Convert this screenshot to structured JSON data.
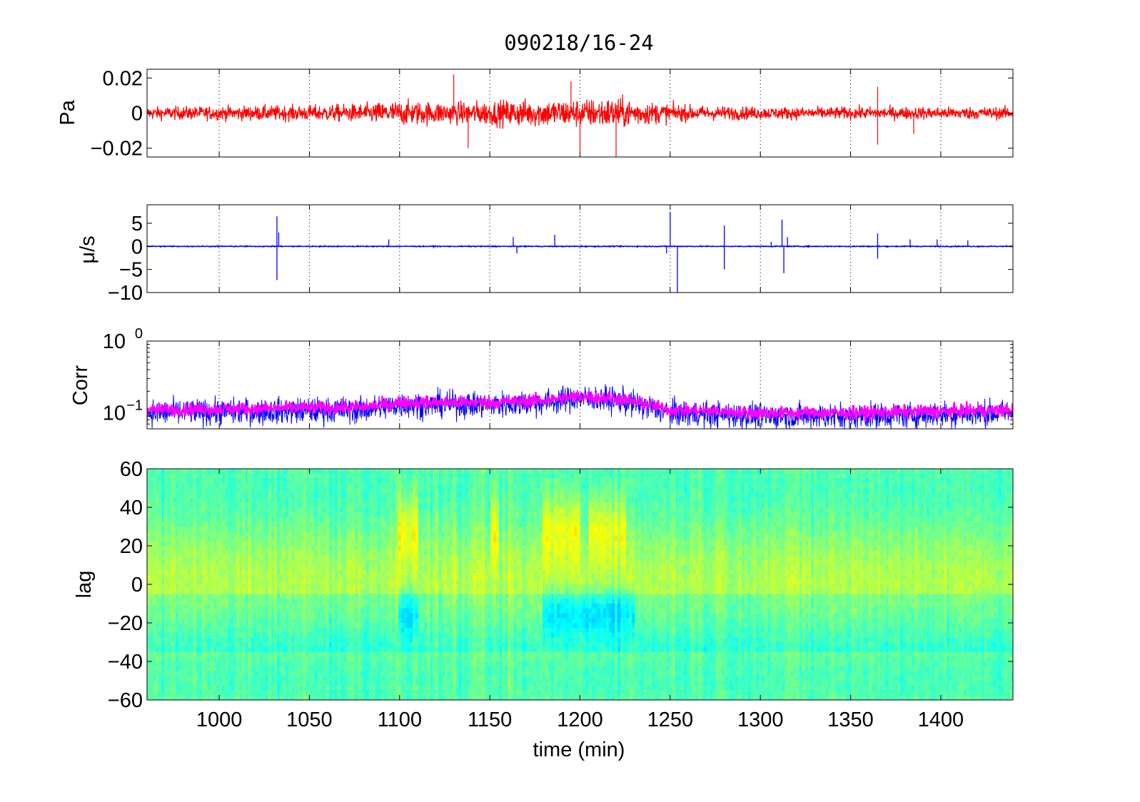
{
  "figure": {
    "title": "090218/16-24",
    "xlabel": "time (min)",
    "xticks": [
      1000,
      1050,
      1100,
      1150,
      1200,
      1250,
      1300,
      1350,
      1400
    ],
    "xlim": [
      960,
      1440
    ]
  },
  "chart_data": [
    {
      "type": "line",
      "ylabel": "Pa",
      "ylim": [
        -0.025,
        0.025
      ],
      "yticks": [
        {
          "v": 0.02,
          "label": "0.02"
        },
        {
          "v": 0,
          "label": "0"
        },
        {
          "v": -0.02,
          "label": "−0.02"
        }
      ],
      "grid": "x-dotted",
      "series": [
        {
          "color": "#ff0000",
          "amplitude_envelope": [
            [
              960,
              0.004
            ],
            [
              1000,
              0.0045
            ],
            [
              1050,
              0.005
            ],
            [
              1080,
              0.006
            ],
            [
              1100,
              0.008
            ],
            [
              1130,
              0.007
            ],
            [
              1150,
              0.008
            ],
            [
              1180,
              0.009
            ],
            [
              1200,
              0.009
            ],
            [
              1220,
              0.01
            ],
            [
              1240,
              0.007
            ],
            [
              1260,
              0.005
            ],
            [
              1300,
              0.004
            ],
            [
              1350,
              0.004
            ],
            [
              1400,
              0.004
            ],
            [
              1440,
              0.004
            ]
          ],
          "spikes": [
            [
              1130,
              0.022
            ],
            [
              1138,
              -0.02
            ],
            [
              1195,
              0.018
            ],
            [
              1200,
              -0.022
            ],
            [
              1220,
              -0.025
            ],
            [
              1365,
              0.015
            ],
            [
              1365,
              -0.018
            ],
            [
              1385,
              -0.012
            ]
          ]
        }
      ]
    },
    {
      "type": "line",
      "ylabel": "μ/s",
      "ylim": [
        -10,
        9
      ],
      "yticks": [
        {
          "v": 5,
          "label": "5"
        },
        {
          "v": 0,
          "label": "0"
        },
        {
          "v": -5,
          "label": "−5"
        },
        {
          "v": -10,
          "label": "−10"
        }
      ],
      "grid": "x-dotted",
      "series": [
        {
          "color": "#0000ff",
          "spikes": [
            [
              1032,
              6.5
            ],
            [
              1032,
              -7.3
            ],
            [
              1033,
              3
            ],
            [
              1094,
              1.5
            ],
            [
              1163,
              2
            ],
            [
              1165,
              -1.5
            ],
            [
              1186,
              2.5
            ],
            [
              1248,
              -1.5
            ],
            [
              1250,
              7.5
            ],
            [
              1254,
              -10
            ],
            [
              1280,
              4.5
            ],
            [
              1280,
              -5
            ],
            [
              1306,
              1
            ],
            [
              1312,
              5.8
            ],
            [
              1313,
              -5.8
            ],
            [
              1315,
              2
            ],
            [
              1365,
              2.8
            ],
            [
              1365,
              -2.7
            ],
            [
              1383,
              1.5
            ],
            [
              1398,
              1.5
            ],
            [
              1415,
              1.3
            ]
          ]
        }
      ]
    },
    {
      "type": "line",
      "ylabel": "Corr",
      "yscale": "log",
      "ylim": [
        0.06,
        1
      ],
      "yticks": [
        {
          "v": 1,
          "base": "10",
          "exp": "0"
        },
        {
          "v": 0.1,
          "base": "10",
          "exp": "−1"
        }
      ],
      "grid": "x-dotted",
      "series": [
        {
          "color": "#0000ff",
          "level": [
            [
              960,
              0.1
            ],
            [
              1080,
              0.11
            ],
            [
              1100,
              0.13
            ],
            [
              1150,
              0.13
            ],
            [
              1180,
              0.14
            ],
            [
              1200,
              0.16
            ],
            [
              1220,
              0.15
            ],
            [
              1250,
              0.1
            ],
            [
              1300,
              0.09
            ],
            [
              1350,
              0.09
            ],
            [
              1440,
              0.1
            ]
          ]
        },
        {
          "color": "#ff00ff",
          "level": [
            [
              960,
              0.11
            ],
            [
              1080,
              0.12
            ],
            [
              1100,
              0.14
            ],
            [
              1150,
              0.14
            ],
            [
              1180,
              0.15
            ],
            [
              1200,
              0.17
            ],
            [
              1220,
              0.16
            ],
            [
              1250,
              0.11
            ],
            [
              1300,
              0.1
            ],
            [
              1350,
              0.1
            ],
            [
              1440,
              0.11
            ]
          ]
        }
      ]
    },
    {
      "type": "heatmap",
      "ylabel": "lag",
      "ylim": [
        -60,
        60
      ],
      "yticks": [
        {
          "v": 60,
          "label": "60"
        },
        {
          "v": 40,
          "label": "40"
        },
        {
          "v": 20,
          "label": "20"
        },
        {
          "v": 0,
          "label": "0"
        },
        {
          "v": -20,
          "label": "−20"
        },
        {
          "v": -40,
          "label": "−40"
        },
        {
          "v": -60,
          "label": "−60"
        }
      ],
      "colormap": "jet",
      "hot_bands": [
        [
          1100,
          1110,
          25
        ],
        [
          1150,
          1155,
          25
        ],
        [
          1180,
          1200,
          30
        ],
        [
          1205,
          1225,
          25
        ]
      ],
      "cold_bands": [
        [
          1100,
          1110,
          -10
        ],
        [
          1180,
          1230,
          -15
        ]
      ]
    }
  ]
}
